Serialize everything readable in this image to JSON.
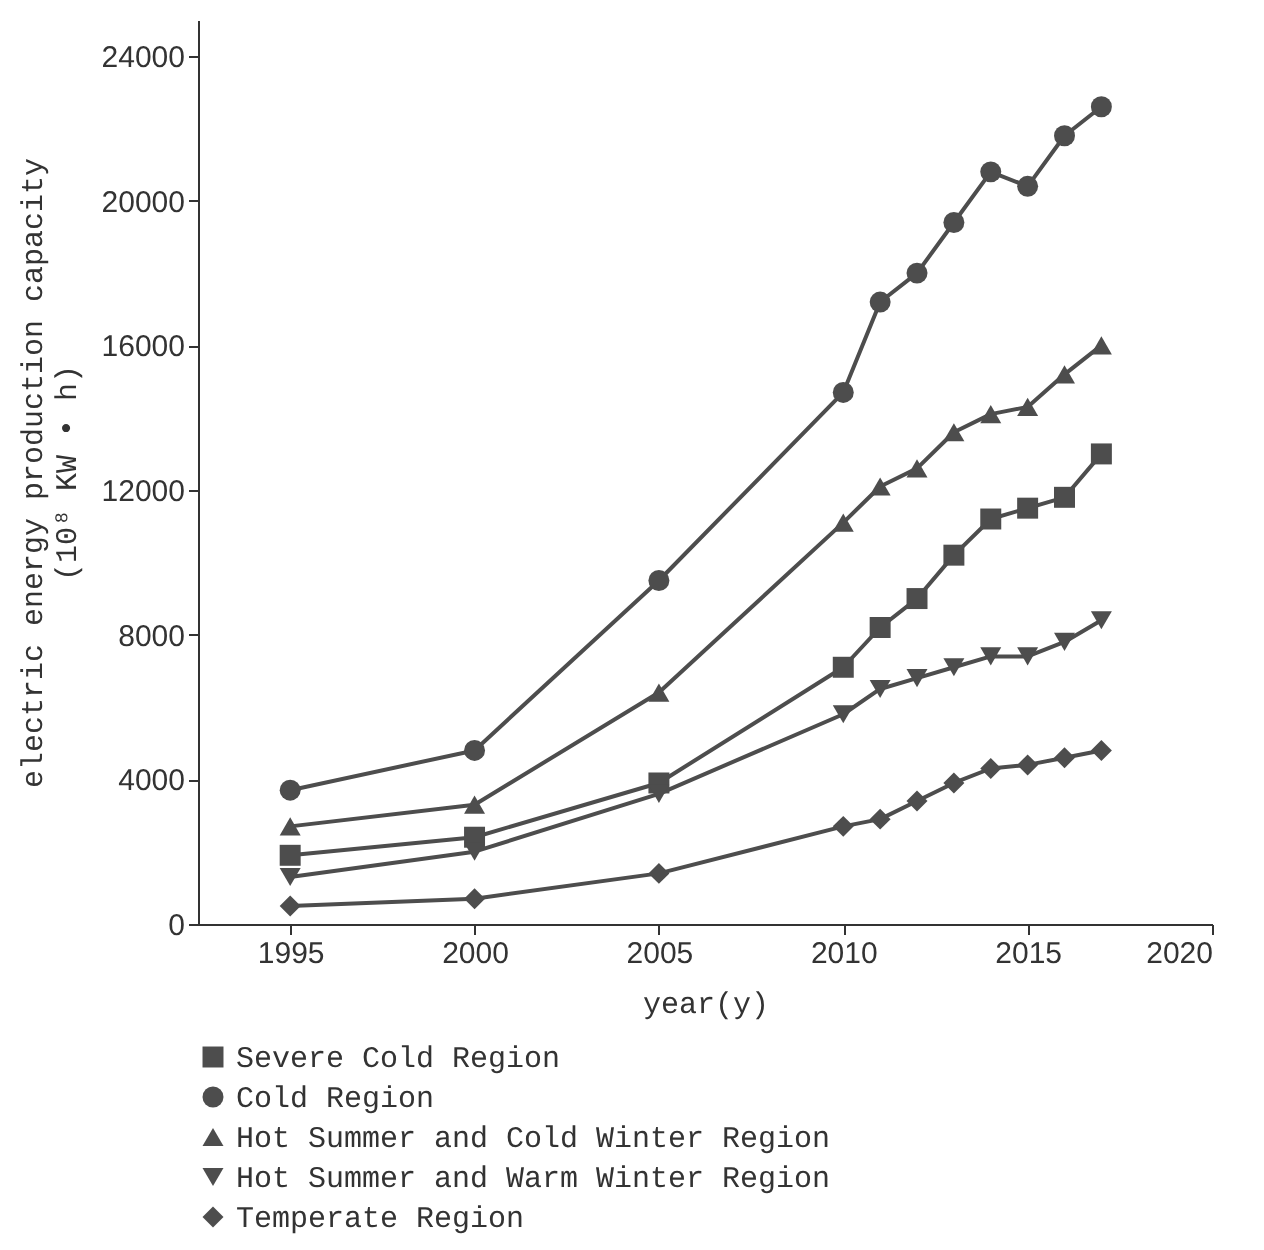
{
  "chart_data": {
    "type": "line",
    "xlabel": "year(y)",
    "ylabel": "electric energy production capacity\n(10⁸ KW • h)",
    "x": [
      1995,
      2000,
      2005,
      2010,
      2011,
      2012,
      2013,
      2014,
      2015,
      2016,
      2017
    ],
    "series": [
      {
        "name": "Severe Cold Region",
        "color": "#4d4d4d",
        "marker": "square",
        "values": [
          1900,
          2400,
          3900,
          7100,
          8200,
          9000,
          10200,
          11200,
          11500,
          11800,
          13000
        ]
      },
      {
        "name": "Cold Region",
        "color": "#4d4d4d",
        "marker": "circle",
        "values": [
          3700,
          4800,
          9500,
          14700,
          17200,
          18000,
          19400,
          20800,
          20400,
          21800,
          22600
        ]
      },
      {
        "name": "Hot Summer and Cold Winter Region",
        "color": "#4d4d4d",
        "marker": "triangle",
        "values": [
          2700,
          3300,
          6400,
          11100,
          12100,
          12600,
          13600,
          14100,
          14300,
          15200,
          16000
        ]
      },
      {
        "name": "Hot Summer and Warm Winter Region",
        "color": "#4d4d4d",
        "marker": "triangle-down",
        "values": [
          1300,
          2000,
          3600,
          5800,
          6500,
          6800,
          7100,
          7400,
          7400,
          7800,
          8400
        ]
      },
      {
        "name": "Temperate Region",
        "color": "#4d4d4d",
        "marker": "diamond",
        "values": [
          500,
          700,
          1400,
          2700,
          2900,
          3400,
          3900,
          4300,
          4400,
          4600,
          4800
        ]
      }
    ],
    "xlim": [
      1992.5,
      2020
    ],
    "xticks": [
      1995,
      2000,
      2005,
      2010,
      2015,
      2020
    ],
    "ylim": [
      0,
      25000
    ],
    "yticks": [
      0,
      4000,
      8000,
      12000,
      16000,
      20000,
      24000
    ],
    "grid": false,
    "legend": "bottom"
  }
}
